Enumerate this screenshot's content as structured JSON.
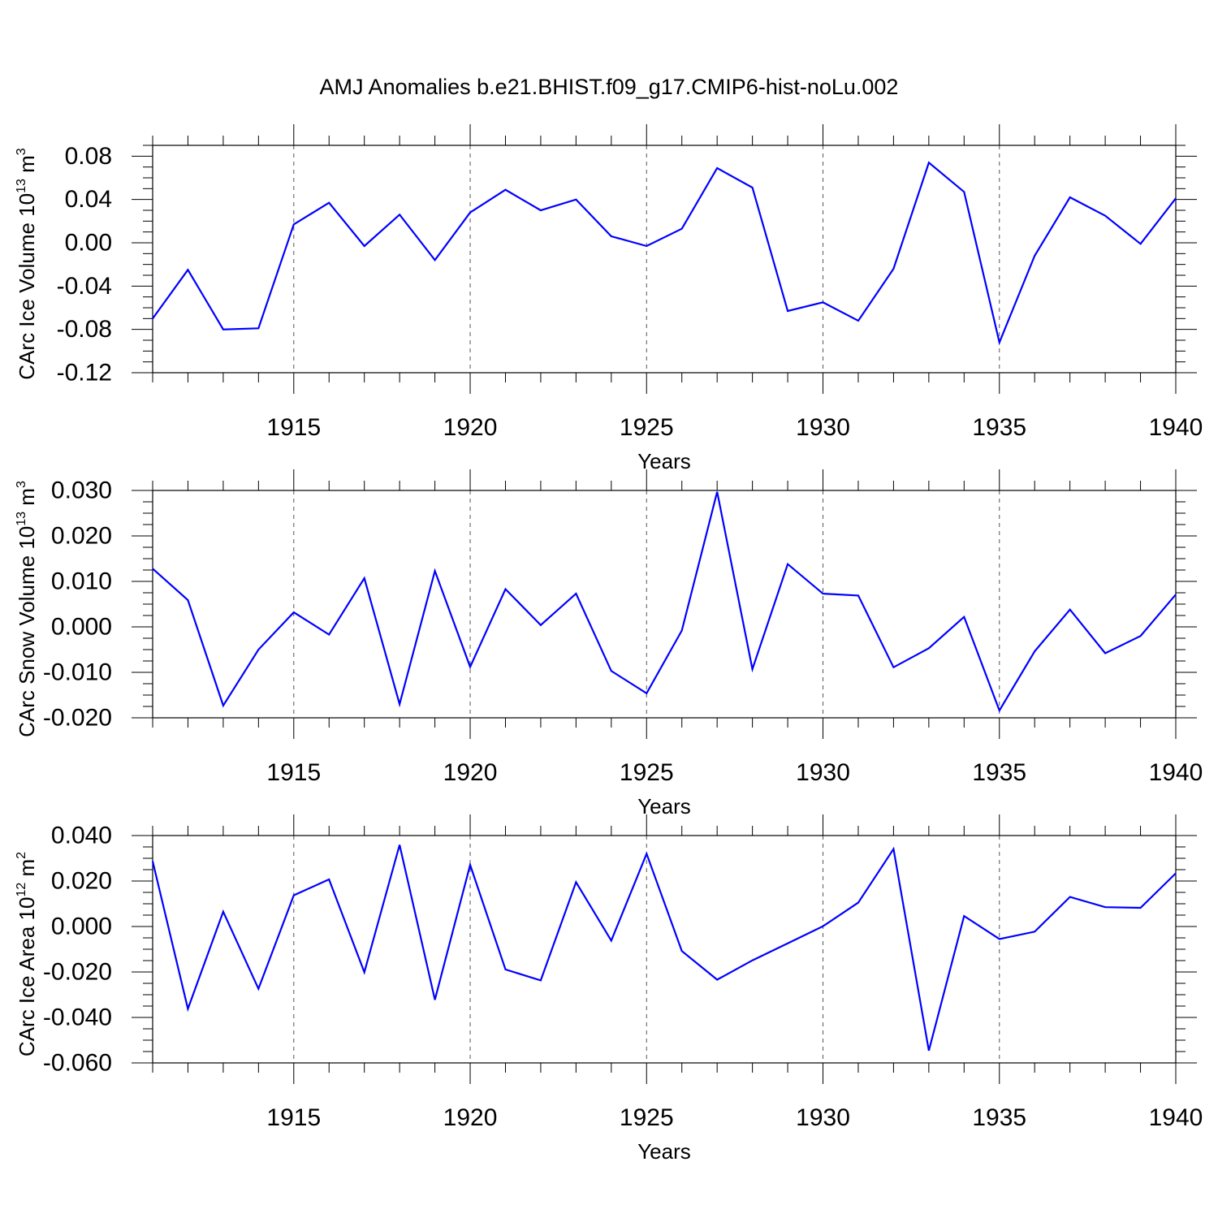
{
  "title": "AMJ Anomalies b.e21.BHIST.f09_g17.CMIP6-hist-noLu.002",
  "chart_data": [
    {
      "type": "line",
      "title": "",
      "xlabel": "Years",
      "ylabel": {
        "text": "CArc Ice Volume 10",
        "sup": "13",
        "unit": " m",
        "unit_sup": "3"
      },
      "xlim": [
        1911,
        1940
      ],
      "ylim": [
        -0.12,
        0.09
      ],
      "xticks": [
        1915,
        1920,
        1925,
        1930,
        1935,
        1940
      ],
      "xtick_labels": [
        "1915",
        "1920",
        "1925",
        "1930",
        "1935",
        "1940"
      ],
      "yticks": [
        -0.12,
        -0.08,
        -0.04,
        0.0,
        0.04,
        0.08
      ],
      "ytick_labels": [
        "-0.12",
        "-0.08",
        "-0.04",
        "0.00",
        "0.04",
        "0.08"
      ],
      "grid": "vertical dashed at major x ticks",
      "color": "#0000ff",
      "x": [
        1911,
        1912,
        1913,
        1914,
        1915,
        1916,
        1917,
        1918,
        1919,
        1920,
        1921,
        1922,
        1923,
        1924,
        1925,
        1926,
        1927,
        1928,
        1929,
        1930,
        1931,
        1932,
        1933,
        1934,
        1935,
        1936,
        1937,
        1938,
        1939,
        1940
      ],
      "values": [
        -0.07,
        -0.025,
        -0.08,
        -0.079,
        0.017,
        0.037,
        -0.003,
        0.026,
        -0.016,
        0.028,
        0.049,
        0.03,
        0.04,
        0.006,
        -0.003,
        0.013,
        0.069,
        0.051,
        -0.063,
        -0.055,
        -0.072,
        -0.024,
        0.074,
        0.047,
        -0.092,
        -0.012,
        0.042,
        0.025,
        -0.001,
        0.041
      ]
    },
    {
      "type": "line",
      "title": "",
      "xlabel": "Years",
      "ylabel": {
        "text": "CArc Snow Volume 10",
        "sup": "13",
        "unit": " m",
        "unit_sup": "3"
      },
      "xlim": [
        1911,
        1940
      ],
      "ylim": [
        -0.02,
        0.03
      ],
      "xticks": [
        1915,
        1920,
        1925,
        1930,
        1935,
        1940
      ],
      "xtick_labels": [
        "1915",
        "1920",
        "1925",
        "1930",
        "1935",
        "1940"
      ],
      "yticks": [
        -0.02,
        -0.01,
        0.0,
        0.01,
        0.02,
        0.03
      ],
      "ytick_labels": [
        "-0.020",
        "-0.010",
        "0.000",
        "0.010",
        "0.020",
        "0.030"
      ],
      "grid": "vertical dashed at major x ticks",
      "color": "#0000ff",
      "x": [
        1911,
        1912,
        1913,
        1914,
        1915,
        1916,
        1917,
        1918,
        1919,
        1920,
        1921,
        1922,
        1923,
        1924,
        1925,
        1926,
        1927,
        1928,
        1929,
        1930,
        1931,
        1932,
        1933,
        1934,
        1935,
        1936,
        1937,
        1938,
        1939,
        1940
      ],
      "values": [
        0.0128,
        0.0059,
        -0.0173,
        -0.005,
        0.0032,
        -0.0017,
        0.0107,
        -0.017,
        0.0123,
        -0.0088,
        0.0083,
        0.0004,
        0.0073,
        -0.0097,
        -0.0146,
        -0.0008,
        0.0297,
        -0.0093,
        0.0138,
        0.0073,
        0.0069,
        -0.0089,
        -0.0047,
        0.0022,
        -0.0184,
        -0.0054,
        0.0038,
        -0.0058,
        -0.002,
        0.0071
      ]
    },
    {
      "type": "line",
      "title": "",
      "xlabel": "Years",
      "ylabel": {
        "text": "CArc Ice Area 10",
        "sup": "12",
        "unit": " m",
        "unit_sup": "2"
      },
      "xlim": [
        1911,
        1940
      ],
      "ylim": [
        -0.06,
        0.04
      ],
      "xticks": [
        1915,
        1920,
        1925,
        1930,
        1935,
        1940
      ],
      "xtick_labels": [
        "1915",
        "1920",
        "1925",
        "1930",
        "1935",
        "1940"
      ],
      "yticks": [
        -0.06,
        -0.04,
        -0.02,
        0.0,
        0.02,
        0.04
      ],
      "ytick_labels": [
        "-0.060",
        "-0.040",
        "-0.020",
        "0.000",
        "0.020",
        "0.040"
      ],
      "grid": "vertical dashed at major x ticks",
      "color": "#0000ff",
      "x": [
        1911,
        1912,
        1913,
        1914,
        1915,
        1916,
        1917,
        1918,
        1919,
        1920,
        1921,
        1922,
        1923,
        1924,
        1925,
        1926,
        1927,
        1928,
        1929,
        1930,
        1931,
        1932,
        1933,
        1934,
        1935,
        1936,
        1937,
        1938,
        1939,
        1940
      ],
      "values": [
        0.0287,
        -0.0362,
        0.0065,
        -0.0274,
        0.0137,
        0.0207,
        -0.0201,
        0.0359,
        -0.0322,
        0.0271,
        -0.0189,
        -0.0237,
        0.0195,
        -0.0062,
        0.032,
        -0.0108,
        -0.0234,
        -0.0149,
        -0.0074,
        0.0001,
        0.0105,
        0.0341,
        -0.0546,
        0.0046,
        -0.0055,
        -0.0023,
        0.013,
        0.0085,
        0.0082,
        0.0234
      ]
    }
  ]
}
